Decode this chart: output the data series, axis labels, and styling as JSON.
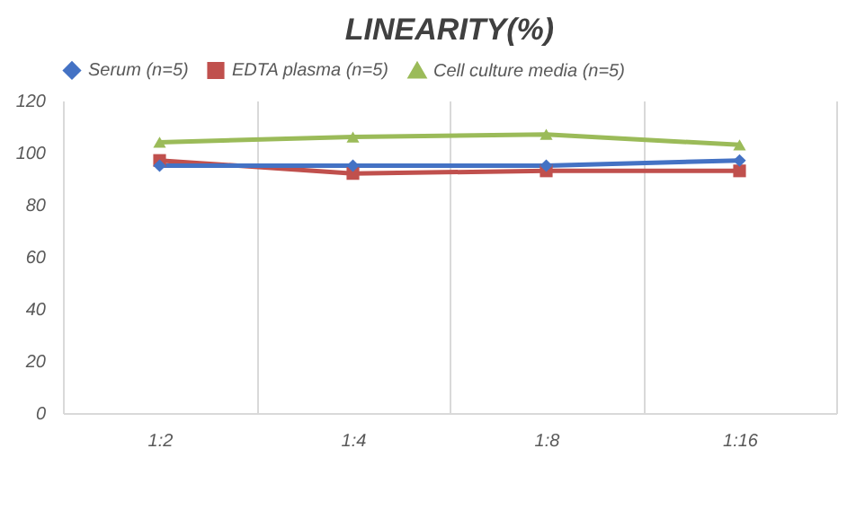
{
  "chart_data": {
    "type": "line",
    "title": "LINEARITY(%)",
    "categories": [
      "1:2",
      "1:4",
      "1:8",
      "1:16"
    ],
    "series": [
      {
        "name": "Serum (n=5)",
        "color": "#4472c4",
        "marker": "diamond",
        "values": [
          95,
          95,
          95,
          97
        ]
      },
      {
        "name": "EDTA plasma (n=5)",
        "color": "#c0504d",
        "marker": "square",
        "values": [
          97,
          92,
          93,
          93
        ]
      },
      {
        "name": "Cell culture media (n=5)",
        "color": "#9bbb59",
        "marker": "triangle",
        "values": [
          104,
          106,
          107,
          103
        ]
      }
    ],
    "ylim": [
      0,
      120
    ],
    "yticks": [
      0,
      20,
      40,
      60,
      80,
      100,
      120
    ],
    "grid": "x",
    "legend": "top"
  }
}
